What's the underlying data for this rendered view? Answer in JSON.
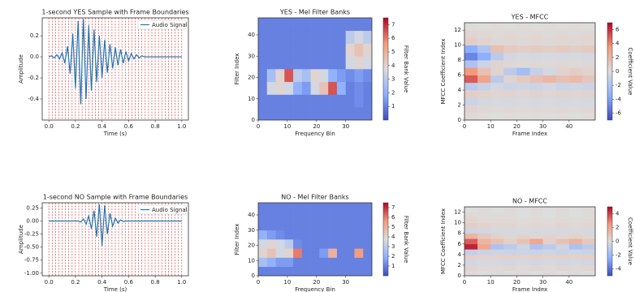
{
  "chart_data": [
    {
      "type": "line",
      "title": "1-second YES Sample with Frame Boundaries",
      "x_label": "Time (s)",
      "y_label": "Amplitude",
      "x": [
        0,
        0.02,
        0.04,
        0.06,
        0.08,
        0.1,
        0.12,
        0.14,
        0.16,
        0.18,
        0.2,
        0.22,
        0.24,
        0.26,
        0.28,
        0.3,
        0.32,
        0.34,
        0.36,
        0.38,
        0.4,
        0.42,
        0.44,
        0.46,
        0.48,
        0.5,
        0.52,
        0.54,
        0.56,
        0.58,
        0.6,
        0.62,
        0.64,
        0.66,
        0.68,
        0.7,
        0.72,
        0.74,
        0.76,
        0.78,
        0.8,
        0.82,
        0.84,
        0.86,
        0.88,
        0.9,
        0.92,
        0.94,
        0.96,
        0.98,
        1
      ],
      "series": [
        {
          "name": "Audio Signal",
          "color": "#1f77b4",
          "values": [
            0,
            0.01,
            -0.01,
            0.02,
            -0.02,
            0.04,
            -0.06,
            0.1,
            -0.16,
            0.22,
            -0.3,
            0.34,
            -0.45,
            0.36,
            -0.4,
            0.3,
            -0.32,
            0.26,
            -0.24,
            0.2,
            -0.2,
            0.16,
            -0.15,
            0.12,
            -0.11,
            0.09,
            -0.08,
            0.07,
            -0.06,
            0.05,
            -0.04,
            0.03,
            -0.02,
            0.02,
            -0.01,
            0.01,
            0,
            0,
            0,
            0,
            0,
            0,
            0,
            0,
            0,
            0,
            0,
            0,
            0,
            0,
            0
          ]
        }
      ],
      "frame_boundaries": [
        0,
        0.025,
        0.05,
        0.075,
        0.1,
        0.125,
        0.15,
        0.175,
        0.2,
        0.225,
        0.25,
        0.275,
        0.3,
        0.325,
        0.35,
        0.375,
        0.4,
        0.425,
        0.45,
        0.475,
        0.5,
        0.525,
        0.55,
        0.575,
        0.6,
        0.625,
        0.65,
        0.675,
        0.7,
        0.725,
        0.75,
        0.775,
        0.8,
        0.825,
        0.85,
        0.875,
        0.9,
        0.925,
        0.95,
        0.975,
        1
      ],
      "frame_color": "#d62728",
      "xlim": [
        -0.05,
        1.05
      ],
      "xticks": [
        {
          "value": 0,
          "label": "0.0"
        },
        0.2,
        0.4,
        0.6,
        0.8,
        {
          "value": 1,
          "label": "1.0"
        }
      ],
      "ylim": [
        -0.6,
        0.37
      ],
      "yticks": [
        -0.4,
        -0.2,
        {
          "value": 0,
          "label": "0.0"
        },
        0.2
      ],
      "legend": "upper right"
    },
    {
      "type": "heatmap",
      "title": "YES - Mel Filter Banks",
      "x_label": "Frequency Bin",
      "y_label": "Filter Index",
      "colorbar_label": "Filter Bank Value",
      "colormap": "coolwarm",
      "xbins": [
        0,
        3,
        6,
        9,
        12,
        15,
        18,
        21,
        24,
        27,
        30,
        33,
        36,
        39
      ],
      "ybins": [
        0,
        6,
        12,
        18,
        24,
        30,
        36,
        42,
        48
      ],
      "z": [
        [
          1,
          1,
          1,
          1,
          1,
          1,
          1,
          1,
          1,
          1,
          1,
          1,
          1
        ],
        [
          1,
          1,
          1,
          1,
          1,
          1,
          1,
          1,
          1,
          1,
          1,
          1.2,
          1
        ],
        [
          1,
          3.5,
          4,
          3.5,
          2,
          1.5,
          3.5,
          4.5,
          6.5,
          2,
          1,
          1.2,
          1
        ],
        [
          1,
          2.5,
          4,
          6.5,
          3,
          2.5,
          4,
          3.5,
          2,
          1.5,
          1.2,
          1.5,
          1.2
        ],
        [
          1,
          1,
          1,
          1,
          1,
          1,
          1,
          1,
          1,
          1,
          3.5,
          4,
          3.5
        ],
        [
          1,
          1,
          1,
          1,
          1,
          1,
          1,
          1,
          1,
          1,
          4,
          4.5,
          4
        ],
        [
          1,
          1,
          1,
          1,
          1,
          1,
          1,
          1,
          1,
          1,
          3,
          3.5,
          3
        ],
        [
          1,
          1,
          1,
          1,
          1,
          1,
          1,
          1,
          1,
          1,
          1,
          1,
          1
        ]
      ],
      "xlim": [
        0,
        39
      ],
      "xticks": [
        0,
        10,
        20,
        30
      ],
      "ylim": [
        0,
        48
      ],
      "yticks": [
        0,
        10,
        20,
        30,
        40
      ],
      "zlim": [
        0,
        7.5
      ],
      "zticks": [
        1,
        2,
        3,
        4,
        5,
        6,
        7
      ]
    },
    {
      "type": "heatmap",
      "title": "YES - MFCC",
      "x_label": "Frame Index",
      "y_label": "MFCC Coefficient Index",
      "colorbar_label": "Coefficient Value",
      "colormap": "coolwarm",
      "xbins": [
        0,
        5,
        10,
        15,
        20,
        25,
        30,
        35,
        40,
        45,
        50
      ],
      "ybins": [
        0,
        1,
        2,
        3,
        4,
        5,
        6,
        7,
        8,
        9,
        10,
        11,
        12,
        13
      ],
      "z": [
        [
          0.2,
          0.1,
          0,
          0.1,
          0,
          0.1,
          0,
          0.1,
          0,
          0.1
        ],
        [
          0.5,
          0.3,
          0.2,
          0.3,
          0.2,
          0.3,
          0.2,
          0.3,
          0.2,
          0.3
        ],
        [
          -0.8,
          -0.5,
          -0.3,
          -0.4,
          -0.3,
          -0.4,
          -0.3,
          -0.4,
          -0.3,
          -0.4
        ],
        [
          0.8,
          0.6,
          0.4,
          0.5,
          0.4,
          0.5,
          0.4,
          0.5,
          0.4,
          0.5
        ],
        [
          -1.5,
          -1,
          -0.5,
          -0.8,
          -0.6,
          -0.8,
          -0.5,
          -0.8,
          -0.6,
          -0.8
        ],
        [
          5,
          3,
          -1.5,
          0.5,
          1,
          1.5,
          2,
          1.5,
          1.8,
          1.2
        ],
        [
          3.5,
          1.5,
          0.5,
          -1.5,
          -2.5,
          -1,
          -0.5,
          0.5,
          0.8,
          0.5
        ],
        [
          -2,
          -0.8,
          0.5,
          0.3,
          0.2,
          0.3,
          0.2,
          0.3,
          0.2,
          0.3
        ],
        [
          -5,
          -3.5,
          -1.5,
          -0.5,
          -0.3,
          -0.4,
          -0.3,
          -0.4,
          -0.3,
          -0.4
        ],
        [
          -3.5,
          -2,
          1.5,
          1,
          0.8,
          1,
          0.8,
          1,
          0.8,
          1
        ],
        [
          0.8,
          0.5,
          0.3,
          0.4,
          0.3,
          0.4,
          0.3,
          0.4,
          0.3,
          0.4
        ],
        [
          0.4,
          0.3,
          0.2,
          0.3,
          0.2,
          0.3,
          0.2,
          0.3,
          0.2,
          0.3
        ],
        [
          0.1,
          0,
          0.1,
          0,
          0.1,
          0,
          0.1,
          0,
          0.1,
          0
        ]
      ],
      "xlim": [
        0,
        50
      ],
      "xticks": [
        0,
        10,
        20,
        30,
        40
      ],
      "ylim": [
        0,
        13
      ],
      "yticks": [
        0,
        2,
        4,
        6,
        8,
        10,
        12
      ],
      "zlim": [
        -7,
        7
      ],
      "zticks": [
        -6,
        -4,
        -2,
        0,
        2,
        4,
        6
      ]
    },
    {
      "type": "line",
      "title": "1-second NO Sample with Frame Boundaries",
      "x_label": "Time (s)",
      "y_label": "Amplitude",
      "x": [
        0,
        0.02,
        0.04,
        0.06,
        0.08,
        0.1,
        0.12,
        0.14,
        0.16,
        0.18,
        0.2,
        0.22,
        0.24,
        0.26,
        0.28,
        0.3,
        0.32,
        0.34,
        0.36,
        0.38,
        0.4,
        0.42,
        0.44,
        0.46,
        0.48,
        0.5,
        0.52,
        0.54,
        0.56,
        0.58,
        0.6,
        0.62,
        0.64,
        0.66,
        0.68,
        0.7,
        0.72,
        0.74,
        0.76,
        0.78,
        0.8,
        0.82,
        0.84,
        0.86,
        0.88,
        0.9,
        0.92,
        0.94,
        0.96,
        0.98,
        1
      ],
      "series": [
        {
          "name": "Audio Signal",
          "color": "#1f77b4",
          "values": [
            0,
            0,
            0,
            0,
            0,
            0,
            0,
            0,
            0,
            0,
            0,
            0,
            -0.02,
            0.04,
            -0.06,
            0.1,
            -0.15,
            0.2,
            -0.3,
            0.32,
            -0.48,
            0.3,
            -0.25,
            0.15,
            -0.1,
            0.06,
            -0.04,
            0.02,
            -0.01,
            0,
            0,
            0,
            0,
            0,
            0,
            0,
            0,
            0,
            0,
            0,
            0,
            0,
            0,
            0,
            0,
            0,
            0,
            0,
            0,
            0,
            0
          ]
        }
      ],
      "frame_boundaries": [
        0,
        0.025,
        0.05,
        0.075,
        0.1,
        0.125,
        0.15,
        0.175,
        0.2,
        0.225,
        0.25,
        0.275,
        0.3,
        0.325,
        0.35,
        0.375,
        0.4,
        0.425,
        0.45,
        0.475,
        0.5,
        0.525,
        0.55,
        0.575,
        0.6,
        0.625,
        0.65,
        0.675,
        0.7,
        0.725,
        0.75,
        0.775,
        0.8,
        0.825,
        0.85,
        0.875,
        0.9,
        0.925,
        0.95,
        0.975,
        1
      ],
      "frame_color": "#d62728",
      "xlim": [
        -0.05,
        1.05
      ],
      "xticks": [
        {
          "value": 0,
          "label": "0.0"
        },
        0.2,
        0.4,
        0.6,
        0.8,
        {
          "value": 1,
          "label": "1.0"
        }
      ],
      "ylim": [
        -1.05,
        0.35
      ],
      "yticks": [
        {
          "value": -1,
          "label": "-1.00"
        },
        -0.75,
        {
          "value": -0.5,
          "label": "-0.50"
        },
        -0.25,
        {
          "value": 0,
          "label": "0.00"
        },
        0.25
      ],
      "legend": "upper right"
    },
    {
      "type": "heatmap",
      "title": "NO - Mel Filter Banks",
      "x_label": "Frequency Bin",
      "y_label": "Filter Index",
      "colorbar_label": "Filter Bank Value",
      "colormap": "coolwarm",
      "xbins": [
        0,
        3,
        6,
        9,
        12,
        15,
        18,
        21,
        24,
        27,
        30,
        33,
        36,
        39
      ],
      "ybins": [
        0,
        6,
        12,
        18,
        24,
        30,
        36,
        42,
        48
      ],
      "z": [
        [
          1,
          1,
          1,
          1,
          1,
          1,
          1,
          1,
          1,
          1,
          1,
          1,
          1
        ],
        [
          2.5,
          2,
          1.5,
          1.5,
          1,
          1,
          1,
          1,
          1,
          1,
          1,
          1,
          1
        ],
        [
          4,
          4.5,
          3.5,
          4,
          6,
          1,
          1,
          1.5,
          5,
          1,
          1,
          5.5,
          1
        ],
        [
          3.5,
          4,
          3.5,
          3,
          1.2,
          1,
          1,
          1,
          1,
          1,
          1,
          1,
          1
        ],
        [
          2,
          1.5,
          1.2,
          1,
          1,
          1,
          1,
          1,
          1,
          1,
          1,
          1,
          1
        ],
        [
          1,
          1,
          1,
          1,
          1,
          1,
          1,
          1,
          1,
          1,
          1,
          1,
          1
        ],
        [
          1,
          1,
          1,
          1,
          1,
          1,
          1,
          1,
          1,
          1,
          1,
          1,
          1
        ],
        [
          1,
          1,
          1,
          1,
          1,
          1,
          1,
          1,
          1,
          1,
          1,
          1,
          1
        ]
      ],
      "xlim": [
        0,
        39
      ],
      "xticks": [
        0,
        10,
        20,
        30
      ],
      "ylim": [
        0,
        48
      ],
      "yticks": [
        0,
        10,
        20,
        30,
        40
      ],
      "zlim": [
        0,
        7.5
      ],
      "zticks": [
        1,
        2,
        3,
        4,
        5,
        6,
        7
      ]
    },
    {
      "type": "heatmap",
      "title": "NO - MFCC",
      "x_label": "Frame Index",
      "y_label": "MFCC Coefficient Index",
      "colorbar_label": "Coefficient Value",
      "colormap": "coolwarm",
      "xbins": [
        0,
        5,
        10,
        15,
        20,
        25,
        30,
        35,
        40,
        45,
        50
      ],
      "ybins": [
        0,
        1,
        2,
        3,
        4,
        5,
        6,
        7,
        8,
        9,
        10,
        11,
        12,
        13
      ],
      "z": [
        [
          0.1,
          0,
          0.1,
          0,
          0.1,
          0,
          0.1,
          0,
          0.1,
          0
        ],
        [
          0.3,
          0.2,
          0.2,
          0.3,
          0.2,
          0.3,
          0.2,
          0.3,
          0.2,
          0.3
        ],
        [
          -0.4,
          -0.3,
          -0.3,
          -0.4,
          -0.3,
          -0.4,
          -0.3,
          -0.4,
          -0.3,
          -0.4
        ],
        [
          0.5,
          0.4,
          0.4,
          0.5,
          0.4,
          0.5,
          0.4,
          0.5,
          0.4,
          0.5
        ],
        [
          -0.8,
          -0.6,
          -0.5,
          -0.6,
          -0.5,
          -0.6,
          -0.5,
          -0.6,
          -0.5,
          -0.6
        ],
        [
          4.5,
          2,
          -1.5,
          -1,
          -0.5,
          -1.5,
          -1,
          -0.5,
          -1.5,
          -1
        ],
        [
          3.5,
          1.5,
          1,
          0.5,
          1,
          2,
          0.5,
          1,
          1.5,
          0.8
        ],
        [
          1.5,
          0.8,
          0.5,
          0.3,
          0.4,
          0.3,
          0.4,
          0.3,
          0.4,
          0.3
        ],
        [
          -0.5,
          -0.4,
          -0.3,
          -0.3,
          -0.2,
          -0.3,
          -0.2,
          -0.3,
          -0.2,
          -0.3
        ],
        [
          0.6,
          0.4,
          0.3,
          0.3,
          0.2,
          0.3,
          0.2,
          0.3,
          0.2,
          0.3
        ],
        [
          0.3,
          0.2,
          0.2,
          0.2,
          0.1,
          0.2,
          0.1,
          0.2,
          0.1,
          0.2
        ],
        [
          0.2,
          0.1,
          0.1,
          0.1,
          0,
          0.1,
          0,
          0.1,
          0,
          0.1
        ],
        [
          0,
          0.1,
          0,
          0.1,
          0,
          0.1,
          0,
          0.1,
          0,
          0.1
        ]
      ],
      "xlim": [
        0,
        50
      ],
      "xticks": [
        0,
        10,
        20,
        30,
        40
      ],
      "ylim": [
        0,
        13
      ],
      "yticks": [
        0,
        2,
        4,
        6,
        8,
        10,
        12
      ],
      "zlim": [
        -5,
        5
      ],
      "zticks": [
        -4,
        -2,
        0,
        2,
        4
      ]
    }
  ]
}
